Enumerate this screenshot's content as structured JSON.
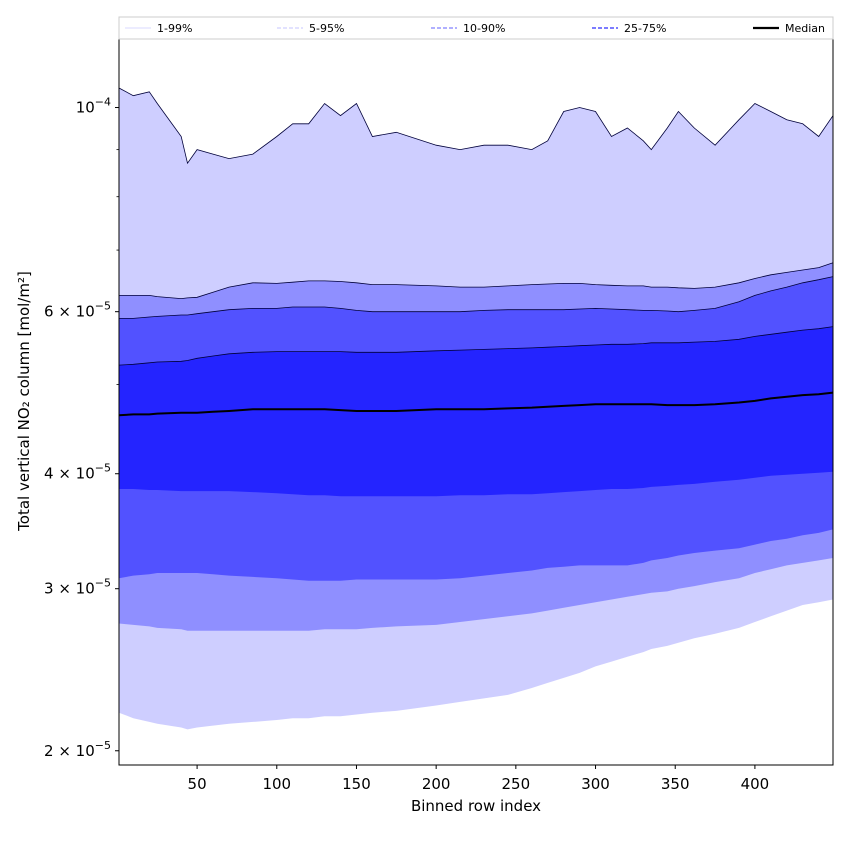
{
  "chart_data": {
    "type": "area",
    "xlabel": "Binned row index",
    "ylabel": "Total vertical NO₂ column [mol/m²]",
    "xlim": [
      1,
      449
    ],
    "ylim": [
      1.93e-05,
      0.000119
    ],
    "yscale": "log",
    "grid": false,
    "legend_position": "top",
    "x_ticks": [
      {
        "value": 50,
        "label": "50"
      },
      {
        "value": 100,
        "label": "100"
      },
      {
        "value": 150,
        "label": "150"
      },
      {
        "value": 200,
        "label": "200"
      },
      {
        "value": 250,
        "label": "250"
      },
      {
        "value": 300,
        "label": "300"
      },
      {
        "value": 350,
        "label": "350"
      },
      {
        "value": 400,
        "label": "400"
      }
    ],
    "y_ticks": [
      {
        "value": 2e-05,
        "mantissa": "2",
        "base": "10",
        "exp": "−5"
      },
      {
        "value": 3e-05,
        "mantissa": "3",
        "base": "10",
        "exp": "−5"
      },
      {
        "value": 4e-05,
        "mantissa": "4",
        "base": "10",
        "exp": "−5"
      },
      {
        "value": 6e-05,
        "mantissa": "6",
        "base": "10",
        "exp": "−5"
      },
      {
        "value": 0.0001,
        "mantissa": "",
        "base": "10",
        "exp": "−4"
      }
    ],
    "y_minor_ticks": [
      5e-05,
      7e-05,
      8e-05,
      9e-05
    ],
    "x": [
      1,
      10,
      20,
      25,
      40,
      44,
      50,
      60,
      70,
      85,
      100,
      110,
      120,
      130,
      140,
      150,
      160,
      175,
      200,
      215,
      230,
      245,
      260,
      270,
      280,
      290,
      300,
      310,
      320,
      330,
      335,
      345,
      352,
      362,
      375,
      390,
      400,
      410,
      420,
      430,
      440,
      449
    ],
    "bands": [
      {
        "name": "1-99%",
        "color": "#ceceff",
        "lower": [
          2.2e-05,
          2.17e-05,
          2.15e-05,
          2.14e-05,
          2.12e-05,
          2.11e-05,
          2.12e-05,
          2.13e-05,
          2.14e-05,
          2.15e-05,
          2.16e-05,
          2.17e-05,
          2.17e-05,
          2.18e-05,
          2.18e-05,
          2.19e-05,
          2.2e-05,
          2.21e-05,
          2.24e-05,
          2.26e-05,
          2.28e-05,
          2.3e-05,
          2.34e-05,
          2.37e-05,
          2.4e-05,
          2.43e-05,
          2.47e-05,
          2.5e-05,
          2.53e-05,
          2.56e-05,
          2.58e-05,
          2.6e-05,
          2.62e-05,
          2.65e-05,
          2.68e-05,
          2.72e-05,
          2.76e-05,
          2.8e-05,
          2.84e-05,
          2.88e-05,
          2.9e-05,
          2.92e-05
        ],
        "upper": [
          0.000105,
          0.000103,
          0.000104,
          0.000101,
          9.3e-05,
          8.7e-05,
          9e-05,
          8.9e-05,
          8.8e-05,
          8.9e-05,
          9.3e-05,
          9.6e-05,
          9.6e-05,
          0.000101,
          9.8e-05,
          0.000101,
          9.3e-05,
          9.4e-05,
          9.1e-05,
          9e-05,
          9.1e-05,
          9.1e-05,
          9e-05,
          9.2e-05,
          9.9e-05,
          0.0001,
          9.9e-05,
          9.3e-05,
          9.5e-05,
          9.2e-05,
          9e-05,
          9.5e-05,
          9.9e-05,
          9.5e-05,
          9.1e-05,
          9.7e-05,
          0.000101,
          9.9e-05,
          9.7e-05,
          9.6e-05,
          9.3e-05,
          9.8e-05
        ]
      },
      {
        "name": "5-95%",
        "color": "#8f8fff",
        "lower": [
          2.75e-05,
          2.74e-05,
          2.73e-05,
          2.72e-05,
          2.71e-05,
          2.7e-05,
          2.7e-05,
          2.7e-05,
          2.7e-05,
          2.7e-05,
          2.7e-05,
          2.7e-05,
          2.7e-05,
          2.71e-05,
          2.71e-05,
          2.71e-05,
          2.72e-05,
          2.73e-05,
          2.74e-05,
          2.76e-05,
          2.78e-05,
          2.8e-05,
          2.82e-05,
          2.84e-05,
          2.86e-05,
          2.88e-05,
          2.9e-05,
          2.92e-05,
          2.94e-05,
          2.96e-05,
          2.97e-05,
          2.98e-05,
          3e-05,
          3.02e-05,
          3.05e-05,
          3.08e-05,
          3.12e-05,
          3.15e-05,
          3.18e-05,
          3.2e-05,
          3.22e-05,
          3.24e-05
        ],
        "upper": [
          6.25e-05,
          6.25e-05,
          6.25e-05,
          6.23e-05,
          6.2e-05,
          6.21e-05,
          6.22e-05,
          6.3e-05,
          6.38e-05,
          6.45e-05,
          6.44e-05,
          6.46e-05,
          6.48e-05,
          6.48e-05,
          6.47e-05,
          6.45e-05,
          6.42e-05,
          6.42e-05,
          6.4e-05,
          6.38e-05,
          6.38e-05,
          6.4e-05,
          6.42e-05,
          6.43e-05,
          6.44e-05,
          6.44e-05,
          6.42e-05,
          6.41e-05,
          6.4e-05,
          6.4e-05,
          6.38e-05,
          6.38e-05,
          6.37e-05,
          6.36e-05,
          6.38e-05,
          6.45e-05,
          6.52e-05,
          6.58e-05,
          6.62e-05,
          6.66e-05,
          6.7e-05,
          6.78e-05
        ]
      },
      {
        "name": "10-90%",
        "color": "#5252ff",
        "lower": [
          3.08e-05,
          3.1e-05,
          3.11e-05,
          3.12e-05,
          3.12e-05,
          3.12e-05,
          3.12e-05,
          3.11e-05,
          3.1e-05,
          3.09e-05,
          3.08e-05,
          3.07e-05,
          3.06e-05,
          3.06e-05,
          3.06e-05,
          3.07e-05,
          3.07e-05,
          3.07e-05,
          3.07e-05,
          3.08e-05,
          3.1e-05,
          3.12e-05,
          3.14e-05,
          3.16e-05,
          3.17e-05,
          3.18e-05,
          3.18e-05,
          3.18e-05,
          3.18e-05,
          3.2e-05,
          3.22e-05,
          3.24e-05,
          3.26e-05,
          3.28e-05,
          3.3e-05,
          3.32e-05,
          3.35e-05,
          3.38e-05,
          3.4e-05,
          3.43e-05,
          3.45e-05,
          3.48e-05
        ],
        "upper": [
          5.9e-05,
          5.9e-05,
          5.92e-05,
          5.93e-05,
          5.95e-05,
          5.95e-05,
          5.97e-05,
          6e-05,
          6.03e-05,
          6.05e-05,
          6.05e-05,
          6.07e-05,
          6.07e-05,
          6.07e-05,
          6.05e-05,
          6.02e-05,
          6e-05,
          6e-05,
          6e-05,
          6e-05,
          6.02e-05,
          6.03e-05,
          6.03e-05,
          6.03e-05,
          6.03e-05,
          6.04e-05,
          6.05e-05,
          6.04e-05,
          6.03e-05,
          6.02e-05,
          6.02e-05,
          6.01e-05,
          6e-05,
          6.02e-05,
          6.05e-05,
          6.15e-05,
          6.25e-05,
          6.32e-05,
          6.38e-05,
          6.45e-05,
          6.5e-05,
          6.55e-05
        ]
      },
      {
        "name": "25-75%",
        "color": "#2424ff",
        "lower": [
          3.85e-05,
          3.85e-05,
          3.84e-05,
          3.84e-05,
          3.83e-05,
          3.83e-05,
          3.83e-05,
          3.83e-05,
          3.83e-05,
          3.82e-05,
          3.81e-05,
          3.8e-05,
          3.79e-05,
          3.79e-05,
          3.78e-05,
          3.78e-05,
          3.78e-05,
          3.78e-05,
          3.78e-05,
          3.79e-05,
          3.79e-05,
          3.8e-05,
          3.8e-05,
          3.81e-05,
          3.82e-05,
          3.83e-05,
          3.84e-05,
          3.85e-05,
          3.85e-05,
          3.86e-05,
          3.87e-05,
          3.88e-05,
          3.89e-05,
          3.9e-05,
          3.92e-05,
          3.94e-05,
          3.96e-05,
          3.98e-05,
          3.99e-05,
          4e-05,
          4.01e-05,
          4.02e-05
        ],
        "upper": [
          5.25e-05,
          5.26e-05,
          5.28e-05,
          5.29e-05,
          5.3e-05,
          5.31e-05,
          5.34e-05,
          5.37e-05,
          5.4e-05,
          5.42e-05,
          5.43e-05,
          5.43e-05,
          5.43e-05,
          5.43e-05,
          5.43e-05,
          5.42e-05,
          5.42e-05,
          5.42e-05,
          5.44e-05,
          5.45e-05,
          5.46e-05,
          5.47e-05,
          5.48e-05,
          5.49e-05,
          5.5e-05,
          5.51e-05,
          5.52e-05,
          5.53e-05,
          5.53e-05,
          5.54e-05,
          5.55e-05,
          5.55e-05,
          5.55e-05,
          5.56e-05,
          5.57e-05,
          5.6e-05,
          5.64e-05,
          5.67e-05,
          5.7e-05,
          5.73e-05,
          5.75e-05,
          5.78e-05
        ]
      }
    ],
    "series": [
      {
        "name": "Median",
        "color": "#000000",
        "values": [
          4.63e-05,
          4.64e-05,
          4.64e-05,
          4.65e-05,
          4.66e-05,
          4.66e-05,
          4.66e-05,
          4.67e-05,
          4.68e-05,
          4.7e-05,
          4.7e-05,
          4.7e-05,
          4.7e-05,
          4.7e-05,
          4.69e-05,
          4.68e-05,
          4.68e-05,
          4.68e-05,
          4.7e-05,
          4.7e-05,
          4.7e-05,
          4.71e-05,
          4.72e-05,
          4.73e-05,
          4.74e-05,
          4.75e-05,
          4.76e-05,
          4.76e-05,
          4.76e-05,
          4.76e-05,
          4.76e-05,
          4.75e-05,
          4.75e-05,
          4.75e-05,
          4.76e-05,
          4.78e-05,
          4.8e-05,
          4.83e-05,
          4.85e-05,
          4.87e-05,
          4.88e-05,
          4.9e-05
        ]
      }
    ],
    "legend": [
      {
        "label": "1-99%",
        "style": "solid",
        "color": "#ccccff",
        "width": 0.8
      },
      {
        "label": "5-95%",
        "style": "dashed",
        "color": "#b3b3ff",
        "width": 0.8
      },
      {
        "label": "10-90%",
        "style": "dashed",
        "color": "#8080ff",
        "width": 1.2
      },
      {
        "label": "25-75%",
        "style": "dashed",
        "color": "#5050ff",
        "width": 1.6
      },
      {
        "label": "Median",
        "style": "solid",
        "color": "#000000",
        "width": 2.2
      }
    ]
  }
}
